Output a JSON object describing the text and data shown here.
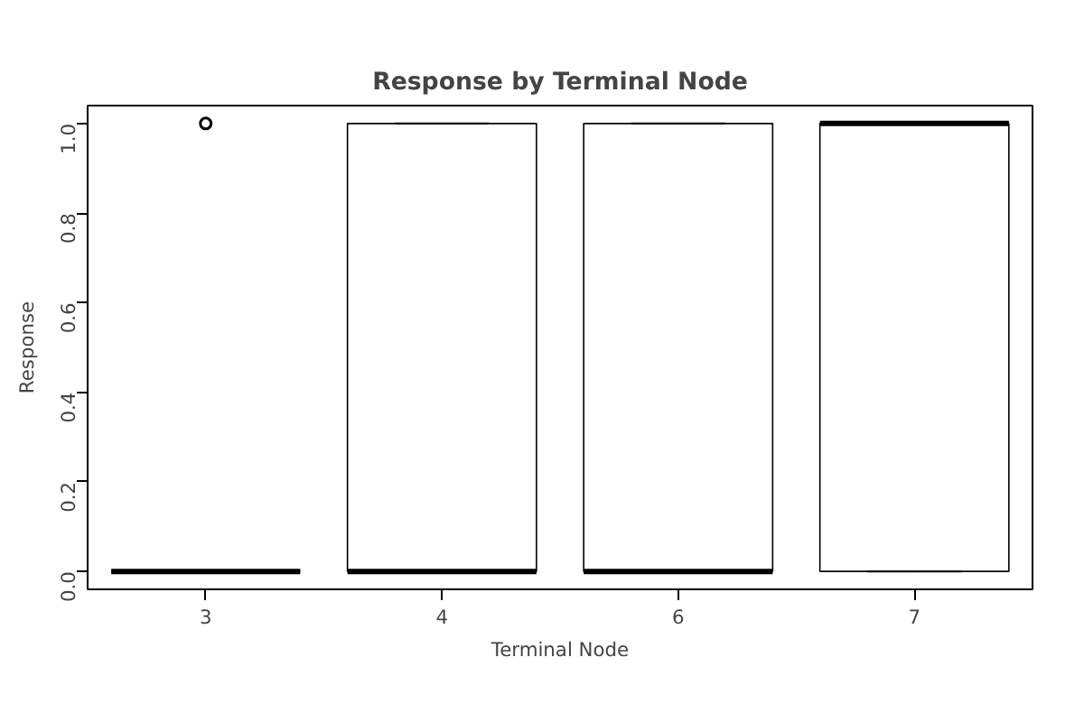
{
  "chart_data": {
    "type": "box",
    "title": "Response by Terminal Node",
    "xlabel": "Terminal Node",
    "ylabel": "Response",
    "categories": [
      "3",
      "4",
      "6",
      "7"
    ],
    "boxes": [
      {
        "low": 0,
        "q1": 0,
        "median": 0,
        "q3": 0,
        "high": 0,
        "outliers": [
          1
        ]
      },
      {
        "low": 0,
        "q1": 0,
        "median": 0,
        "q3": 1,
        "high": 1
      },
      {
        "low": 0,
        "q1": 0,
        "median": 0,
        "q3": 1,
        "high": 1
      },
      {
        "low": 0,
        "q1": 0,
        "median": 1,
        "q3": 1,
        "high": 1
      }
    ],
    "ylim": [
      -0.04,
      1.04
    ],
    "yticks": [
      {
        "value": 0,
        "label": "0.0"
      },
      {
        "value": 0.2,
        "label": "0.2"
      },
      {
        "value": 0.4,
        "label": "0.4"
      },
      {
        "value": 0.6,
        "label": "0.6"
      },
      {
        "value": 0.8,
        "label": "0.8"
      },
      {
        "value": 1,
        "label": "1.0"
      }
    ]
  }
}
